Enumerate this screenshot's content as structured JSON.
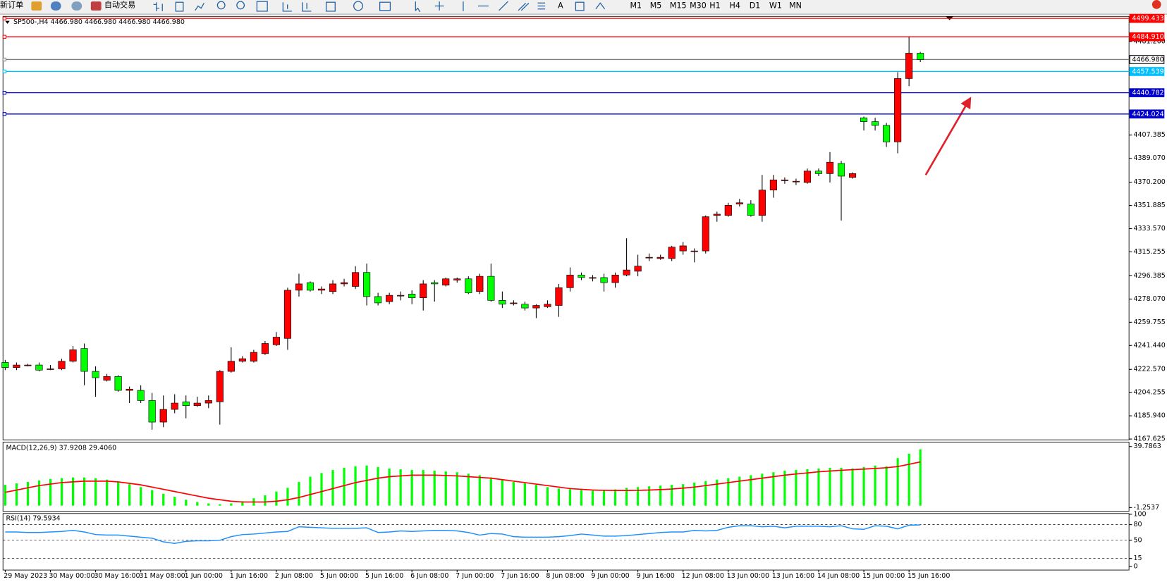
{
  "toolbar": {
    "new_order": "新订单",
    "auto_trading": "自动交易",
    "timeframes": [
      "M1",
      "M5",
      "M15",
      "M30",
      "H1",
      "H4",
      "D1",
      "W1",
      "MN"
    ]
  },
  "chart_data": [
    {
      "type": "candlestick",
      "title": "SP500-,H4  4466.980 4466.980 4466.980 4466.980",
      "categories": [
        "29 May 2023",
        null,
        null,
        null,
        "30 May 00:00",
        null,
        null,
        null,
        "30 May 16:00",
        null,
        null,
        null,
        "31 May 08:00",
        null,
        null,
        null,
        "1 Jun 00:00",
        null,
        null,
        null,
        "1 Jun 16:00",
        null,
        null,
        null,
        "2 Jun 08:00",
        null,
        null,
        null,
        "5 Jun 00:00",
        null,
        null,
        null,
        "5 Jun 16:00",
        null,
        null,
        null,
        "6 Jun 08:00",
        null,
        null,
        null,
        "7 Jun 00:00",
        null,
        null,
        null,
        "7 Jun 16:00",
        null,
        null,
        null,
        "8 Jun 08:00",
        null,
        null,
        null,
        "9 Jun 00:00",
        null,
        null,
        null,
        "9 Jun 16:00",
        null,
        null,
        null,
        "12 Jun 08:00",
        null,
        null,
        null,
        "13 Jun 00:00",
        null,
        null,
        null,
        "13 Jun 16:00",
        null,
        null,
        null,
        "14 Jun 08:00",
        null,
        null,
        null,
        "15 Jun 00:00",
        null,
        null,
        null,
        "15 Jun 16:00",
        null
      ],
      "open": [
        4228,
        4224,
        4226,
        4226,
        4223,
        4223,
        4229,
        4239,
        4221,
        4214,
        4217,
        4206,
        4206,
        4198,
        4181,
        4191,
        4197,
        4194,
        4196,
        4197,
        4221,
        4229,
        4229,
        4235,
        4242,
        4247,
        4285,
        4291,
        4285,
        4284,
        4290,
        4288,
        4299,
        4280,
        4276,
        4281,
        4282,
        4279,
        4291,
        4289,
        4293,
        4294,
        4284,
        4296,
        4277,
        4275,
        4274,
        4271,
        4272,
        4273,
        4287,
        4297,
        4295,
        4295,
        4291,
        4297,
        4300,
        4311,
        4310,
        4310,
        4316,
        4316,
        4316,
        4344,
        4344,
        4353,
        4353,
        4344,
        4364,
        4372,
        4371,
        4370,
        4379,
        4377,
        4385,
        4374,
        4421,
        4418,
        4415,
        4402,
        4452,
        4472
      ],
      "high": [
        4230,
        4228,
        4227,
        4228,
        4226,
        4231,
        4241,
        4243,
        4225,
        4219,
        4218,
        4209,
        4210,
        4204,
        4202,
        4203,
        4202,
        4201,
        4202,
        4222,
        4240,
        4233,
        4238,
        4245,
        4252,
        4287,
        4298,
        4292,
        4288,
        4293,
        4294,
        4304,
        4306,
        4283,
        4283,
        4284,
        4285,
        4293,
        4293,
        4295,
        4295,
        4296,
        4298,
        4306,
        4284,
        4277,
        4276,
        4274,
        4277,
        4290,
        4303,
        4299,
        4297,
        4298,
        4299,
        4326,
        4313,
        4314,
        4313,
        4320,
        4323,
        4318,
        4344,
        4347,
        4354,
        4357,
        4356,
        4376,
        4376,
        4374,
        4373,
        4381,
        4381,
        4394,
        4387,
        4378,
        4422,
        4421,
        4417,
        4457,
        4485,
        4473
      ],
      "low": [
        4222,
        4222,
        4225,
        4221,
        4222,
        4222,
        4228,
        4210,
        4201,
        4213,
        4205,
        4196,
        4196,
        4175,
        4177,
        4188,
        4184,
        4193,
        4192,
        4179,
        4220,
        4228,
        4228,
        4234,
        4241,
        4238,
        4280,
        4284,
        4282,
        4282,
        4288,
        4286,
        4273,
        4273,
        4274,
        4277,
        4274,
        4269,
        4276,
        4288,
        4291,
        4282,
        4282,
        4276,
        4271,
        4273,
        4269,
        4263,
        4271,
        4264,
        4284,
        4293,
        4292,
        4284,
        4287,
        4296,
        4296,
        4308,
        4309,
        4308,
        4313,
        4307,
        4314,
        4339,
        4343,
        4351,
        4343,
        4339,
        4358,
        4369,
        4368,
        4369,
        4375,
        4370,
        4340,
        4373,
        4411,
        4411,
        4398,
        4393,
        4446,
        4465
      ],
      "close": [
        4224,
        4226,
        4226,
        4222,
        4223,
        4229,
        4238,
        4221,
        4216,
        4217,
        4206,
        4207,
        4198,
        4181,
        4191,
        4196,
        4194,
        4196,
        4198,
        4221,
        4229,
        4231,
        4236,
        4243,
        4248,
        4285,
        4290,
        4285,
        4286,
        4290,
        4291,
        4299,
        4280,
        4275,
        4281,
        4281,
        4279,
        4290,
        4290,
        4294,
        4294,
        4283,
        4296,
        4277,
        4274,
        4275,
        4271,
        4273,
        4274,
        4287,
        4297,
        4295,
        4295,
        4291,
        4297,
        4301,
        4304,
        4311,
        4311,
        4319,
        4320,
        4316,
        4343,
        4345,
        4352,
        4354,
        4344,
        4364,
        4372,
        4372,
        4371,
        4379,
        4377,
        4386,
        4375,
        4377,
        4418,
        4415,
        4402,
        4452,
        4472,
        4466.98
      ],
      "up_color": "#ff0000",
      "down_color": "#00ff00",
      "ylim": [
        4167.0,
        4501.0
      ],
      "yticks": [
        {
          "value": 4481.2,
          "label": "4481.200"
        },
        4407.385,
        {
          "value": 4389.07,
          "label": "4389.070"
        },
        {
          "value": 4370.2,
          "label": "4370.200"
        },
        4351.885,
        {
          "value": 4333.57,
          "label": "4333.570"
        },
        4315.255,
        4296.385,
        {
          "value": 4278.07,
          "label": "4278.070"
        },
        4259.755,
        {
          "value": 4241.44,
          "label": "4241.440"
        },
        {
          "value": 4222.57,
          "label": "4222.570"
        },
        4204.255,
        {
          "value": 4185.94,
          "label": "4185.940"
        },
        4167.625
      ],
      "levels": [
        {
          "value": 4499.433,
          "color": "#ff0000"
        },
        {
          "value": 4484.91,
          "label": "4484.910",
          "color": "#ff0000"
        },
        {
          "value": 4466.98,
          "label": "4466.980",
          "color": "#808080"
        },
        {
          "value": 4457.539,
          "color": "#00bfff"
        },
        {
          "value": 4440.782,
          "color": "#0000cd"
        },
        {
          "value": 4424.024,
          "color": "#0000cd"
        }
      ]
    },
    {
      "type": "macd",
      "title": "MACD(12,26,9) 37.9208 29.4060",
      "histogram": {
        "color": "#00ff00",
        "values": [
          14,
          15,
          16,
          17,
          18,
          18.5,
          19,
          19,
          18.5,
          17.5,
          16,
          14.5,
          12.5,
          10.5,
          8,
          6,
          4,
          2.5,
          1.5,
          1,
          1.5,
          3,
          5,
          7,
          9.5,
          12,
          16,
          19.5,
          22,
          24,
          25.5,
          26.5,
          27,
          26,
          25,
          24.5,
          24,
          24,
          23.5,
          23,
          22.5,
          21.5,
          20.5,
          19,
          17.5,
          16,
          15,
          14,
          12.5,
          11.5,
          11,
          10.5,
          10,
          10.5,
          11,
          12,
          12.5,
          13,
          13.5,
          14,
          14.5,
          15.5,
          16.5,
          17.5,
          18.5,
          19.5,
          20.5,
          21.5,
          22.5,
          23.5,
          24,
          24.5,
          25,
          25.5,
          25.5,
          25,
          26,
          27,
          26.5,
          32,
          35,
          37.9208
        ]
      },
      "signal": {
        "color": "#ff0000",
        "values": [
          9,
          10.5,
          12,
          13.5,
          14.5,
          15.5,
          16,
          16.5,
          16.5,
          16.5,
          16,
          15,
          14,
          12.5,
          11,
          9.5,
          8,
          6.5,
          5,
          4,
          3,
          2.5,
          2.5,
          2.5,
          3,
          4,
          5.5,
          7.5,
          9.5,
          11.5,
          13.5,
          15.5,
          17,
          18.5,
          19.5,
          20,
          20.5,
          20.5,
          20.5,
          20.3,
          20,
          19.5,
          19,
          18.5,
          17.5,
          16.5,
          15.5,
          14.5,
          13.5,
          12.5,
          11.5,
          11,
          10.5,
          10.3,
          10.2,
          10.2,
          10.3,
          10.5,
          10.8,
          11.2,
          11.8,
          12.5,
          13.5,
          14.5,
          15.5,
          16.5,
          17.5,
          18.5,
          19.5,
          20.5,
          21.3,
          22,
          22.8,
          23.3,
          23.8,
          24.2,
          24.6,
          25,
          25.5,
          26.3,
          27.8,
          29.406
        ]
      },
      "ylim": [
        -1.2537,
        39.7863
      ],
      "yticks": [
        39.7863,
        -1.2537
      ]
    },
    {
      "type": "line",
      "title": "RSI(14) 79.5934",
      "color": "#1e90ff",
      "values": [
        66,
        66,
        65,
        65,
        66,
        67,
        69,
        66,
        61,
        60,
        60,
        58,
        56,
        54,
        47,
        44,
        48,
        49,
        49,
        50,
        57,
        61,
        62,
        64,
        66,
        67,
        76,
        75,
        74,
        73,
        73,
        73,
        74,
        65,
        66,
        68,
        67,
        68,
        69,
        69,
        68,
        65,
        60,
        63,
        62,
        57,
        56,
        56,
        56,
        57,
        59,
        62,
        60,
        58,
        58,
        59,
        61,
        63,
        65,
        66,
        66,
        69,
        68,
        69,
        75,
        78,
        78,
        76,
        77,
        74,
        77,
        77,
        77,
        76,
        78,
        72,
        71,
        78,
        77,
        72,
        79,
        79.5934
      ],
      "ylim": [
        0,
        100
      ],
      "yticks": [
        100,
        80,
        50,
        15,
        0
      ],
      "levels": [
        80,
        50,
        15
      ]
    }
  ]
}
